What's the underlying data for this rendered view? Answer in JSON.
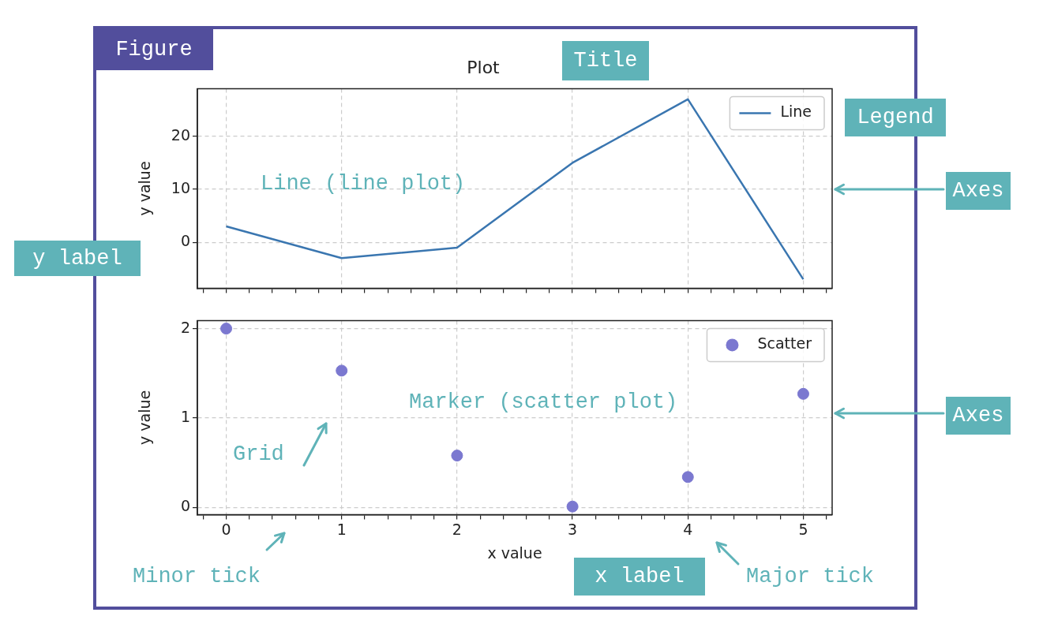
{
  "chart_data": [
    {
      "type": "line",
      "title": "Plot",
      "ylabel": "y value",
      "x": [
        0,
        1,
        2,
        3,
        4,
        5
      ],
      "series": [
        {
          "name": "Line",
          "color": "#3a76b0",
          "values": [
            3,
            -3,
            -1,
            15,
            27,
            -7
          ]
        }
      ],
      "xlim": [
        -0.25,
        5.25
      ],
      "ylim": [
        -8.7,
        29
      ],
      "xticks": [
        {
          "value": -0.2,
          "label": null
        },
        0,
        {
          "value": 0.2,
          "label": null
        },
        {
          "value": 0.4,
          "label": null
        },
        {
          "value": 0.6,
          "label": null
        },
        {
          "value": 0.8,
          "label": null
        },
        1,
        {
          "value": 1.2,
          "label": null
        },
        {
          "value": 1.4,
          "label": null
        },
        {
          "value": 1.6,
          "label": null
        },
        {
          "value": 1.8,
          "label": null
        },
        2,
        {
          "value": 2.2,
          "label": null
        },
        {
          "value": 2.4,
          "label": null
        },
        {
          "value": 2.6,
          "label": null
        },
        {
          "value": 2.8,
          "label": null
        },
        3,
        {
          "value": 3.2,
          "label": null
        },
        {
          "value": 3.4,
          "label": null
        },
        {
          "value": 3.6,
          "label": null
        },
        {
          "value": 3.8,
          "label": null
        },
        4,
        {
          "value": 4.2,
          "label": null
        },
        {
          "value": 4.4,
          "label": null
        },
        {
          "value": 4.6,
          "label": null
        },
        {
          "value": 4.8,
          "label": null
        },
        5,
        {
          "value": 5.2,
          "label": null
        }
      ],
      "yticks": [
        0,
        10,
        20
      ],
      "tick_labels": "y",
      "grid": true,
      "legend": "top right",
      "line_style": "solid",
      "marker": "none",
      "annotations": [
        "Figure",
        "Title",
        "Legend",
        "Axes",
        "y label",
        "Line (line plot)"
      ]
    },
    {
      "type": "scatter",
      "ylabel": "y value",
      "xlabel": "x value",
      "x": [
        0,
        1,
        2,
        3,
        4,
        5
      ],
      "series": [
        {
          "name": "Scatter",
          "color": "#7b78d0",
          "values": [
            2,
            1.53,
            0.58,
            0.01,
            0.34,
            1.27
          ]
        }
      ],
      "xlim": [
        -0.25,
        5.25
      ],
      "ylim": [
        -0.08,
        2.09
      ],
      "xticks": [
        {
          "value": -0.2,
          "label": null
        },
        0,
        {
          "value": 0.2,
          "label": null
        },
        {
          "value": 0.4,
          "label": null
        },
        {
          "value": 0.6,
          "label": null
        },
        {
          "value": 0.8,
          "label": null
        },
        1,
        {
          "value": 1.2,
          "label": null
        },
        {
          "value": 1.4,
          "label": null
        },
        {
          "value": 1.6,
          "label": null
        },
        {
          "value": 1.8,
          "label": null
        },
        2,
        {
          "value": 2.2,
          "label": null
        },
        {
          "value": 2.4,
          "label": null
        },
        {
          "value": 2.6,
          "label": null
        },
        {
          "value": 2.8,
          "label": null
        },
        3,
        {
          "value": 3.2,
          "label": null
        },
        {
          "value": 3.4,
          "label": null
        },
        {
          "value": 3.6,
          "label": null
        },
        {
          "value": 3.8,
          "label": null
        },
        4,
        {
          "value": 4.2,
          "label": null
        },
        {
          "value": 4.4,
          "label": null
        },
        {
          "value": 4.6,
          "label": null
        },
        {
          "value": 4.8,
          "label": null
        },
        5,
        {
          "value": 5.2,
          "label": null
        }
      ],
      "yticks": [
        0,
        1,
        2
      ],
      "grid": true,
      "legend": "top right",
      "marker": "circle",
      "annotations": [
        "Axes",
        "Marker (scatter plot)",
        "Grid",
        "Minor tick",
        "x label",
        "Major tick"
      ]
    }
  ]
}
